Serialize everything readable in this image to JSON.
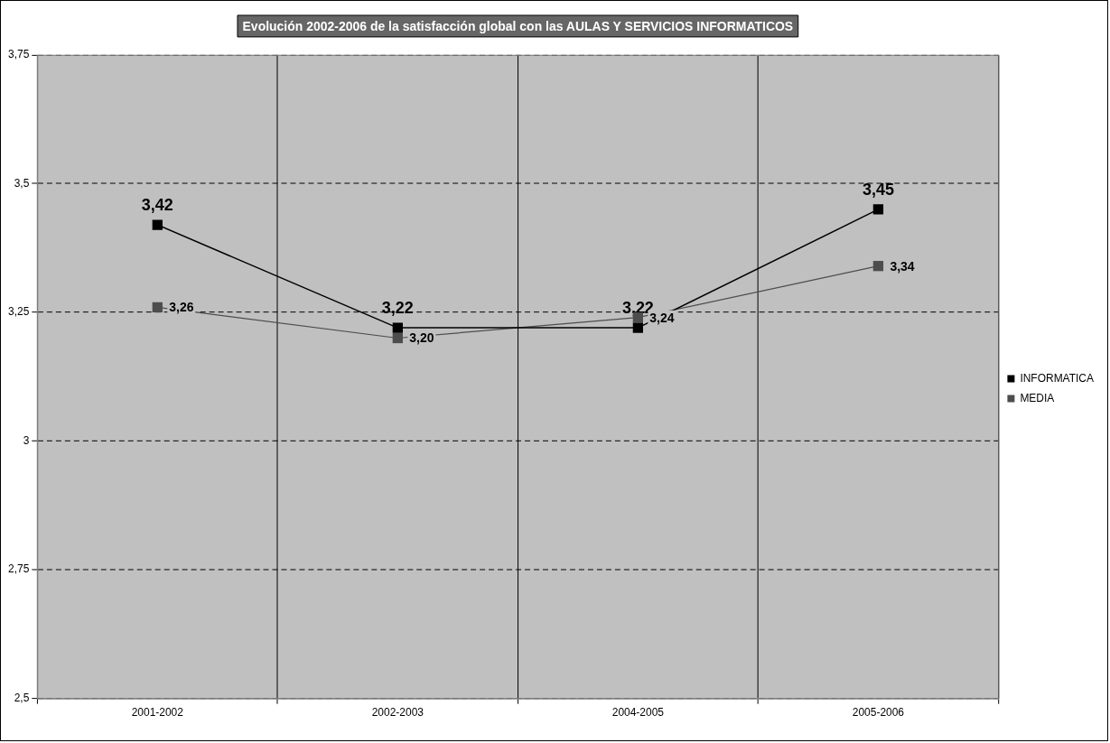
{
  "chart_data": {
    "type": "line",
    "title": "Evolución 2002-2006 de la satisfacción global con las AULAS Y SERVICIOS INFORMATICOS",
    "categories": [
      "2001-2002",
      "2002-2003",
      "2004-2005",
      "2005-2006"
    ],
    "series": [
      {
        "name": "INFORMATICA",
        "color": "#000000",
        "values": [
          3.42,
          3.22,
          3.22,
          3.45
        ],
        "value_labels": [
          "3,42",
          "3,22",
          "3,22",
          "3,45"
        ]
      },
      {
        "name": "MEDIA",
        "color": "#4d4d4d",
        "values": [
          3.26,
          3.2,
          3.24,
          3.34
        ],
        "value_labels": [
          "3,26",
          "3,20",
          "3,24",
          "3,34"
        ]
      }
    ],
    "ylim": [
      2.5,
      3.75
    ],
    "yticks": [
      {
        "value": 2.5,
        "label": "2,5"
      },
      {
        "value": 2.75,
        "label": "2,75"
      },
      {
        "value": 3,
        "label": "3"
      },
      {
        "value": 3.25,
        "label": "3,25"
      },
      {
        "value": 3.5,
        "label": "3,5"
      },
      {
        "value": 3.75,
        "label": "3,75"
      }
    ],
    "grid": true,
    "legend": "right",
    "marker": "square",
    "line_style": "solid"
  }
}
